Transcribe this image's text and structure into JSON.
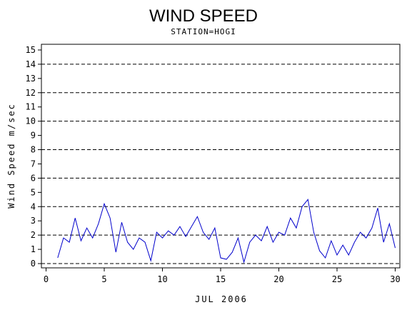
{
  "chart_data": {
    "type": "line",
    "title": "WIND SPEED",
    "subtitle": "STATION=HOGI",
    "x_label": "JUL 2006",
    "y_label": "Wind Speed m/sec",
    "x": [
      1,
      1.5,
      2,
      2.5,
      3,
      3.5,
      4,
      4.5,
      5,
      5.5,
      6,
      6.5,
      7,
      7.5,
      8,
      8.5,
      9,
      9.5,
      10,
      10.5,
      11,
      11.5,
      12,
      12.5,
      13,
      13.5,
      14,
      14.5,
      15,
      15.5,
      16,
      16.5,
      17,
      17.5,
      18,
      18.5,
      19,
      19.5,
      20,
      20.5,
      21,
      21.5,
      22,
      22.5,
      23,
      23.5,
      24,
      24.5,
      25,
      25.5,
      26,
      26.5,
      27,
      27.5,
      28,
      28.5,
      29,
      29.5,
      30
    ],
    "series": [
      {
        "color": "#0000cc",
        "values": [
          0.4,
          1.8,
          1.5,
          3.2,
          1.6,
          2.5,
          1.8,
          2.8,
          4.2,
          3.2,
          0.8,
          2.9,
          1.5,
          1.0,
          1.8,
          1.5,
          0.2,
          2.2,
          1.8,
          2.3,
          2.0,
          2.6,
          1.9,
          2.6,
          3.3,
          2.2,
          1.7,
          2.5,
          0.4,
          0.3,
          0.8,
          1.8,
          0.1,
          1.5,
          2.0,
          1.6,
          2.6,
          1.5,
          2.2,
          2.0,
          3.2,
          2.5,
          4.0,
          4.5,
          2.2,
          0.9,
          0.4,
          1.6,
          0.6,
          1.3,
          0.6,
          1.5,
          2.2,
          1.8,
          2.5,
          3.9,
          1.5,
          2.8,
          1.1
        ]
      }
    ],
    "xlim": [
      -0.4,
      30.4
    ],
    "ylim": [
      -0.3,
      15.4
    ],
    "xticks": [
      0,
      5,
      10,
      15,
      20,
      25,
      30
    ],
    "yticks": [
      0,
      1,
      2,
      3,
      4,
      5,
      6,
      7,
      8,
      9,
      10,
      11,
      12,
      13,
      14,
      15
    ],
    "grid_yticks": [
      0,
      2,
      4,
      6,
      8,
      10,
      12,
      14
    ]
  }
}
